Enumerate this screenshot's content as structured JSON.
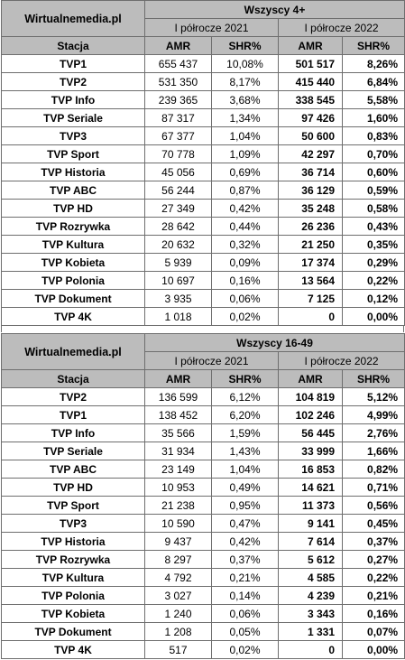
{
  "tables": [
    {
      "site": "Wirtualnemedia.pl",
      "group": "Wszyscy 4+",
      "period_2021": "I półrocze 2021",
      "period_2022": "I półrocze 2022",
      "col_station": "Stacja",
      "col_amr": "AMR",
      "col_shr": "SHR%",
      "rows": [
        {
          "station": "TVP1",
          "amr_2021": "655 437",
          "shr_2021": "10,08%",
          "amr_2022": "501 517",
          "shr_2022": "8,26%"
        },
        {
          "station": "TVP2",
          "amr_2021": "531 350",
          "shr_2021": "8,17%",
          "amr_2022": "415 440",
          "shr_2022": "6,84%"
        },
        {
          "station": "TVP Info",
          "amr_2021": "239 365",
          "shr_2021": "3,68%",
          "amr_2022": "338 545",
          "shr_2022": "5,58%"
        },
        {
          "station": "TVP Seriale",
          "amr_2021": "87 317",
          "shr_2021": "1,34%",
          "amr_2022": "97 426",
          "shr_2022": "1,60%"
        },
        {
          "station": "TVP3",
          "amr_2021": "67 377",
          "shr_2021": "1,04%",
          "amr_2022": "50 600",
          "shr_2022": "0,83%"
        },
        {
          "station": "TVP Sport",
          "amr_2021": "70 778",
          "shr_2021": "1,09%",
          "amr_2022": "42 297",
          "shr_2022": "0,70%"
        },
        {
          "station": "TVP Historia",
          "amr_2021": "45 056",
          "shr_2021": "0,69%",
          "amr_2022": "36 714",
          "shr_2022": "0,60%"
        },
        {
          "station": "TVP ABC",
          "amr_2021": "56 244",
          "shr_2021": "0,87%",
          "amr_2022": "36 129",
          "shr_2022": "0,59%"
        },
        {
          "station": "TVP HD",
          "amr_2021": "27 349",
          "shr_2021": "0,42%",
          "amr_2022": "35 248",
          "shr_2022": "0,58%"
        },
        {
          "station": "TVP Rozrywka",
          "amr_2021": "28 642",
          "shr_2021": "0,44%",
          "amr_2022": "26 236",
          "shr_2022": "0,43%"
        },
        {
          "station": "TVP Kultura",
          "amr_2021": "20 632",
          "shr_2021": "0,32%",
          "amr_2022": "21 250",
          "shr_2022": "0,35%"
        },
        {
          "station": "TVP Kobieta",
          "amr_2021": "5 939",
          "shr_2021": "0,09%",
          "amr_2022": "17 374",
          "shr_2022": "0,29%"
        },
        {
          "station": "TVP Polonia",
          "amr_2021": "10 697",
          "shr_2021": "0,16%",
          "amr_2022": "13 564",
          "shr_2022": "0,22%"
        },
        {
          "station": "TVP Dokument",
          "amr_2021": "3 935",
          "shr_2021": "0,06%",
          "amr_2022": "7 125",
          "shr_2022": "0,12%"
        },
        {
          "station": "TVP 4K",
          "amr_2021": "1 018",
          "shr_2021": "0,02%",
          "amr_2022": "0",
          "shr_2022": "0,00%"
        }
      ]
    },
    {
      "site": "Wirtualnemedia.pl",
      "group": "Wszyscy 16-49",
      "period_2021": "I półrocze 2021",
      "period_2022": "I półrocze 2022",
      "col_station": "Stacja",
      "col_amr": "AMR",
      "col_shr": "SHR%",
      "rows": [
        {
          "station": "TVP2",
          "amr_2021": "136 599",
          "shr_2021": "6,12%",
          "amr_2022": "104 819",
          "shr_2022": "5,12%"
        },
        {
          "station": "TVP1",
          "amr_2021": "138 452",
          "shr_2021": "6,20%",
          "amr_2022": "102 246",
          "shr_2022": "4,99%"
        },
        {
          "station": "TVP Info",
          "amr_2021": "35 566",
          "shr_2021": "1,59%",
          "amr_2022": "56 445",
          "shr_2022": "2,76%"
        },
        {
          "station": "TVP Seriale",
          "amr_2021": "31 934",
          "shr_2021": "1,43%",
          "amr_2022": "33 999",
          "shr_2022": "1,66%"
        },
        {
          "station": "TVP ABC",
          "amr_2021": "23 149",
          "shr_2021": "1,04%",
          "amr_2022": "16 853",
          "shr_2022": "0,82%"
        },
        {
          "station": "TVP HD",
          "amr_2021": "10 953",
          "shr_2021": "0,49%",
          "amr_2022": "14 621",
          "shr_2022": "0,71%"
        },
        {
          "station": "TVP Sport",
          "amr_2021": "21 238",
          "shr_2021": "0,95%",
          "amr_2022": "11 373",
          "shr_2022": "0,56%"
        },
        {
          "station": "TVP3",
          "amr_2021": "10 590",
          "shr_2021": "0,47%",
          "amr_2022": "9 141",
          "shr_2022": "0,45%"
        },
        {
          "station": "TVP Historia",
          "amr_2021": "9 437",
          "shr_2021": "0,42%",
          "amr_2022": "7 614",
          "shr_2022": "0,37%"
        },
        {
          "station": "TVP Rozrywka",
          "amr_2021": "8 297",
          "shr_2021": "0,37%",
          "amr_2022": "5 612",
          "shr_2022": "0,27%"
        },
        {
          "station": "TVP Kultura",
          "amr_2021": "4 792",
          "shr_2021": "0,21%",
          "amr_2022": "4 585",
          "shr_2022": "0,22%"
        },
        {
          "station": "TVP Polonia",
          "amr_2021": "3 027",
          "shr_2021": "0,14%",
          "amr_2022": "4 239",
          "shr_2022": "0,21%"
        },
        {
          "station": "TVP Kobieta",
          "amr_2021": "1 240",
          "shr_2021": "0,06%",
          "amr_2022": "3 343",
          "shr_2022": "0,16%"
        },
        {
          "station": "TVP Dokument",
          "amr_2021": "1 208",
          "shr_2021": "0,05%",
          "amr_2022": "1 331",
          "shr_2022": "0,07%"
        },
        {
          "station": "TVP 4K",
          "amr_2021": "517",
          "shr_2021": "0,02%",
          "amr_2022": "0",
          "shr_2022": "0,00%"
        }
      ]
    }
  ]
}
